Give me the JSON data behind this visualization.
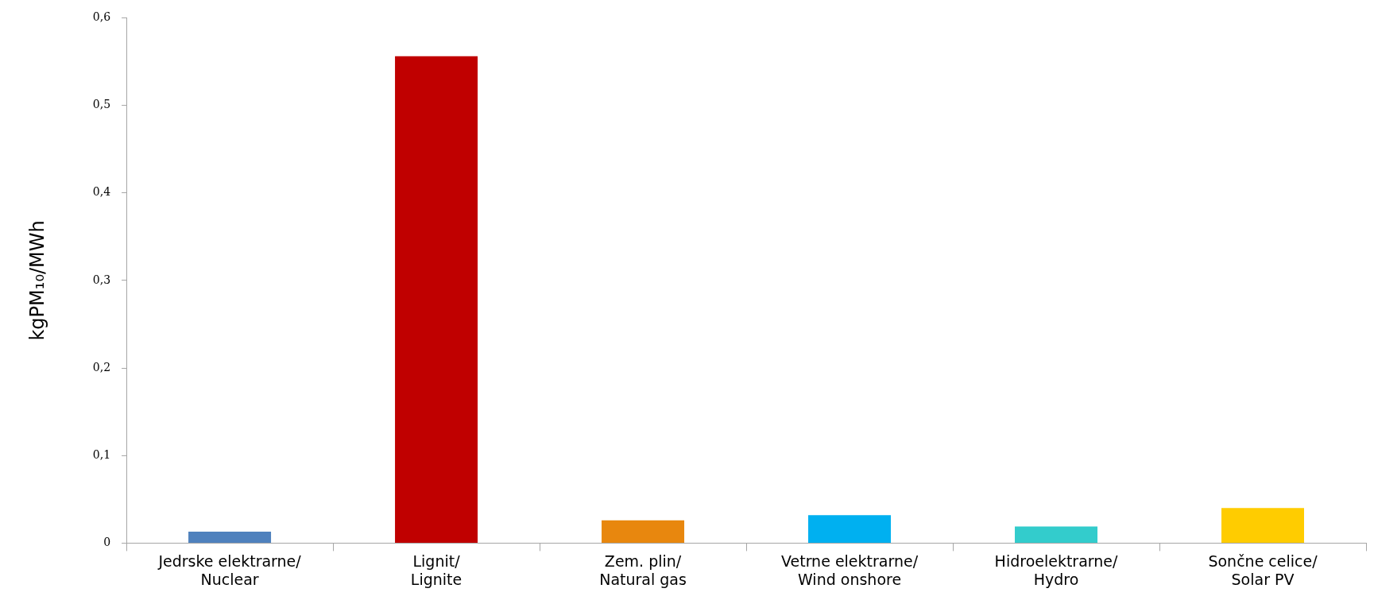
{
  "chart_data": {
    "type": "bar",
    "ylabel": "kgPM₁₀/MWh",
    "categories": [
      "Jedrske elektrarne/\nNuclear",
      "Lignit/\nLignite",
      "Zem. plin/\nNatural gas",
      "Vetrne elektrarne/\nWind onshore",
      "Hidroelektrarne/\nHydro",
      "Sončne celice/\nSolar PV"
    ],
    "values": [
      0.013,
      0.556,
      0.026,
      0.032,
      0.019,
      0.04
    ],
    "colors": [
      "#4f81bd",
      "#c00000",
      "#e8870e",
      "#00b0f0",
      "#33cccc",
      "#ffcc00"
    ],
    "ylim": [
      0,
      0.6
    ],
    "yticks": [
      {
        "value": 0,
        "label": "0"
      },
      {
        "value": 0.1,
        "label": "0,1"
      },
      {
        "value": 0.2,
        "label": "0,2"
      },
      {
        "value": 0.3,
        "label": "0,3"
      },
      {
        "value": 0.4,
        "label": "0,4"
      },
      {
        "value": 0.5,
        "label": "0,5"
      },
      {
        "value": 0.6,
        "label": "0,6"
      }
    ],
    "grid": false,
    "legend": false
  }
}
